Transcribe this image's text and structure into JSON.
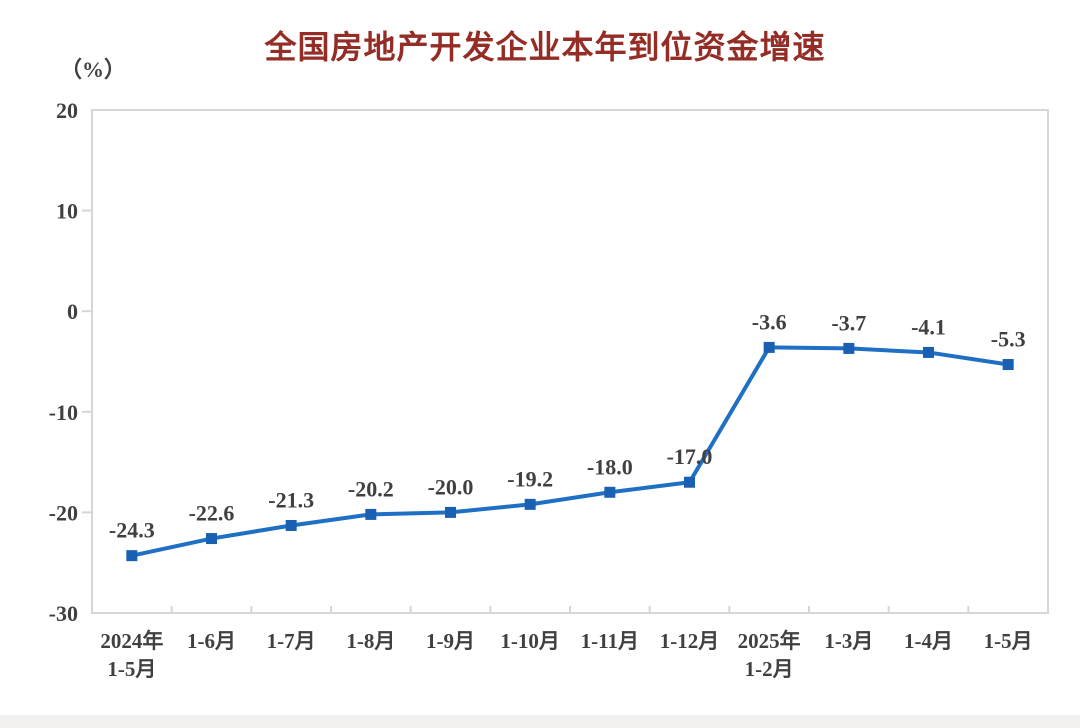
{
  "page": {
    "title": "全国房地产开发企业本年到位资金增速",
    "unit_label": "（%）"
  },
  "chart_data": {
    "type": "line",
    "title": "全国房地产开发企业本年到位资金增速",
    "unit_label": "（%）",
    "categories": [
      [
        "2024年",
        "1-5月"
      ],
      [
        "1-6月"
      ],
      [
        "1-7月"
      ],
      [
        "1-8月"
      ],
      [
        "1-9月"
      ],
      [
        "1-10月"
      ],
      [
        "1-11月"
      ],
      [
        "1-12月"
      ],
      [
        "2025年",
        "1-2月"
      ],
      [
        "1-3月"
      ],
      [
        "1-4月"
      ],
      [
        "1-5月"
      ]
    ],
    "values": [
      -24.3,
      -22.6,
      -21.3,
      -20.2,
      -20.0,
      -19.2,
      -18.0,
      -17.0,
      -3.6,
      -3.7,
      -4.1,
      -5.3
    ],
    "point_labels": [
      "-24.3",
      "-22.6",
      "-21.3",
      "-20.2",
      "-20.0",
      "-19.2",
      "-18.0",
      "-17.0",
      "-3.6",
      "-3.7",
      "-4.1",
      "-5.3"
    ],
    "ylim": [
      -30,
      20
    ],
    "yticks": [
      20,
      10,
      0,
      -10,
      -20,
      -30
    ],
    "grid": false,
    "legend": "none",
    "marker_shape": "square",
    "colors": {
      "line": "#1f6fc4",
      "marker": "#1a60b2",
      "title": "#942d25",
      "axis_text": "#404040",
      "plot_border": "#d6d6d6"
    }
  }
}
